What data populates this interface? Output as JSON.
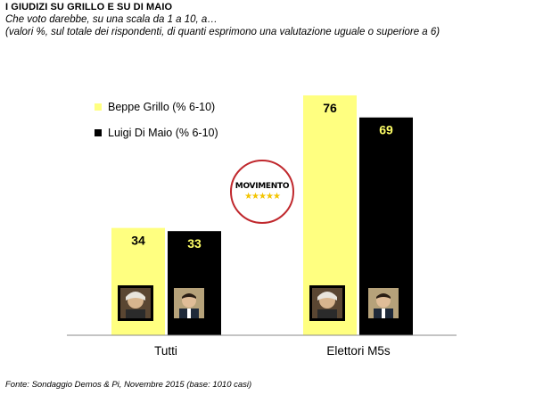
{
  "header": {
    "title": "I GIUDIZI SU GRILLO E SU DI MAIO",
    "subtitle_line1": "Che voto darebbe, su una scala da 1 a 10, a…",
    "subtitle_line2": "(valori %, sul totale dei rispondenti, di quanti esprimono una valutazione uguale o superiore a 6)"
  },
  "logo": {
    "text": "MOVIMENTO",
    "stars": "★★★★★"
  },
  "source": "Fonte: Sondaggio Demos & Pi, Novembre 2015 (base: 1010 casi)",
  "colors": {
    "series1": "#ffff80",
    "series2": "#000000",
    "label1": "#000000",
    "label2": "#ffff66",
    "logo_ring": "#c0282d"
  },
  "chart_data": {
    "type": "bar",
    "categories": [
      "Tutti",
      "Elettori M5s"
    ],
    "series": [
      {
        "name": "Beppe Grillo (% 6-10)",
        "values": [
          34,
          76
        ]
      },
      {
        "name": "Luigi Di Maio (% 6-10)",
        "values": [
          33,
          69
        ]
      }
    ],
    "data_labels": true,
    "legend_position": "top-left",
    "grid": false,
    "ylim": [
      0,
      100
    ]
  }
}
